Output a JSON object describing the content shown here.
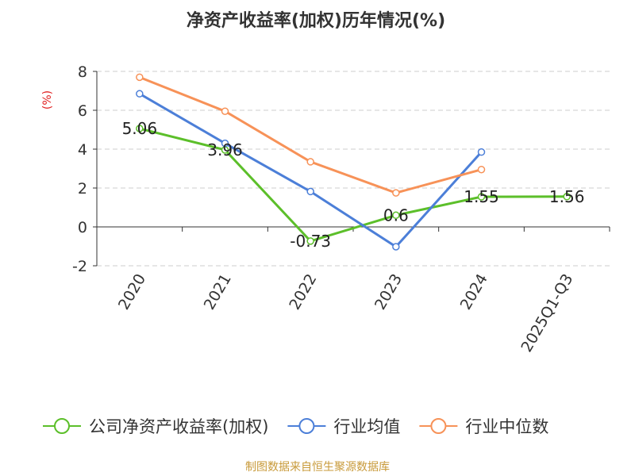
{
  "chart_data": {
    "type": "line",
    "title": "净资产收益率(加权)历年情况(%)",
    "ylabel": "(%)",
    "xlabel": "",
    "categories": [
      "2020",
      "2021",
      "2022",
      "2023",
      "2024",
      "2025Q1-Q3"
    ],
    "ylim": [
      -2,
      8
    ],
    "yticks": [
      -2,
      0,
      2,
      4,
      6,
      8
    ],
    "grid": true,
    "legend_position": "bottom",
    "series": [
      {
        "name": "公司净资产收益率(加权)",
        "color": "#5cbf2a",
        "values": [
          5.06,
          3.96,
          -0.73,
          0.6,
          1.55,
          1.56
        ],
        "labels": [
          "5.06",
          "3.96",
          "-0.73",
          "0.6",
          "1.55",
          "1.56"
        ]
      },
      {
        "name": "行业均值",
        "color": "#4c7fd8",
        "values": [
          6.85,
          4.3,
          1.82,
          -1.02,
          3.85,
          null
        ]
      },
      {
        "name": "行业中位数",
        "color": "#f79258",
        "values": [
          7.7,
          5.95,
          3.35,
          1.75,
          2.95,
          null
        ]
      }
    ],
    "source": "制图数据来自恒生聚源数据库",
    "colors": {
      "title": "#333333",
      "ylabel": "#e02020",
      "axis": "#333333",
      "grid": "#cccccc",
      "source": "#c89a3a"
    }
  }
}
